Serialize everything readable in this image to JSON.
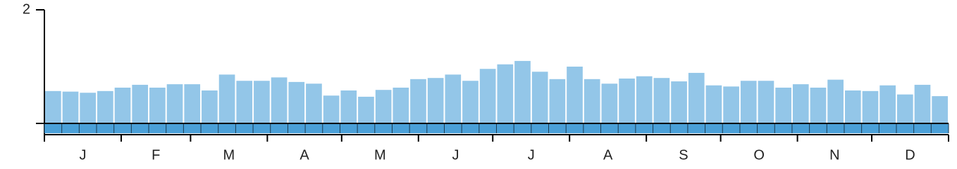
{
  "chart_data": {
    "type": "bar",
    "values": [
      0.57,
      0.56,
      0.54,
      0.57,
      0.63,
      0.68,
      0.63,
      0.69,
      0.69,
      0.58,
      0.86,
      0.75,
      0.75,
      0.81,
      0.73,
      0.7,
      0.49,
      0.58,
      0.47,
      0.59,
      0.63,
      0.78,
      0.8,
      0.86,
      0.75,
      0.96,
      1.04,
      1.1,
      0.91,
      0.78,
      1.0,
      0.78,
      0.7,
      0.79,
      0.83,
      0.8,
      0.74,
      0.89,
      0.67,
      0.65,
      0.75,
      0.75,
      0.63,
      0.69,
      0.63,
      0.77,
      0.58,
      0.57,
      0.67,
      0.51,
      0.68,
      0.48
    ],
    "color": "#93c6e8",
    "month_labels": [
      "J",
      "F",
      "M",
      "A",
      "M",
      "J",
      "J",
      "A",
      "S",
      "O",
      "N",
      "D"
    ],
    "ylim": [
      0,
      2
    ],
    "yticks": [
      2
    ]
  }
}
